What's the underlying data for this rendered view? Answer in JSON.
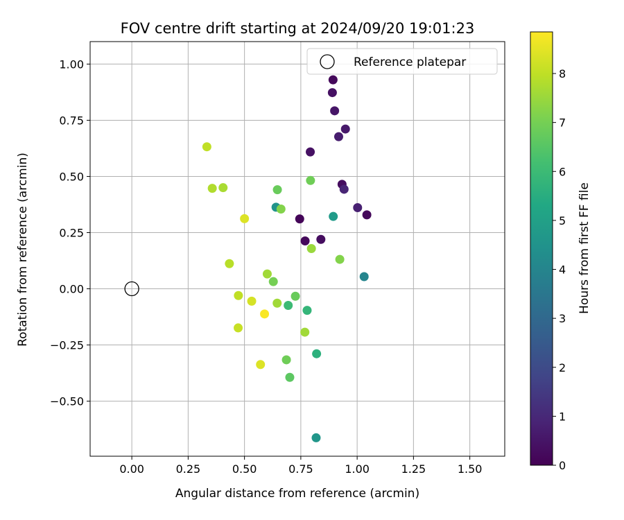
{
  "chart_data": {
    "type": "scatter",
    "title": "FOV centre drift starting at 2024/09/20 19:01:23",
    "xlabel": "Angular distance from reference (arcmin)",
    "ylabel": "Rotation from reference (arcmin)",
    "xlim": [
      -0.185,
      1.655
    ],
    "ylim": [
      -0.745,
      1.1
    ],
    "xticks": [
      0.0,
      0.25,
      0.5,
      0.75,
      1.0,
      1.25,
      1.5
    ],
    "xtick_labels": [
      "0.00",
      "0.25",
      "0.50",
      "0.75",
      "1.00",
      "1.25",
      "1.50"
    ],
    "yticks": [
      -0.5,
      -0.25,
      0.0,
      0.25,
      0.5,
      0.75,
      1.0
    ],
    "ytick_labels": [
      "−0.50",
      "−0.25",
      "0.00",
      "0.25",
      "0.50",
      "0.75",
      "1.00"
    ],
    "grid": true,
    "legend": {
      "position": "top-right",
      "entries": [
        "Reference platepar"
      ]
    },
    "reference_point": {
      "x": 0.0,
      "y": 0.0,
      "label": "Reference platepar"
    },
    "colorbar": {
      "label": "Hours from first FF file",
      "colormap": "viridis",
      "range": [
        0,
        8.85
      ],
      "ticks": [
        0,
        1,
        2,
        3,
        4,
        5,
        6,
        7,
        8
      ],
      "tick_labels": [
        "0",
        "1",
        "2",
        "3",
        "4",
        "5",
        "6",
        "7",
        "8"
      ]
    },
    "points": [
      {
        "x": 0.893,
        "y": 0.93,
        "c": 0.2
      },
      {
        "x": 0.89,
        "y": 0.873,
        "c": 0.4
      },
      {
        "x": 0.9,
        "y": 0.792,
        "c": 0.5
      },
      {
        "x": 0.948,
        "y": 0.711,
        "c": 0.6
      },
      {
        "x": 0.918,
        "y": 0.677,
        "c": 0.7
      },
      {
        "x": 0.792,
        "y": 0.609,
        "c": 0.4
      },
      {
        "x": 0.933,
        "y": 0.465,
        "c": 0.3
      },
      {
        "x": 0.942,
        "y": 0.443,
        "c": 0.9
      },
      {
        "x": 1.002,
        "y": 0.361,
        "c": 0.8
      },
      {
        "x": 1.043,
        "y": 0.329,
        "c": 0.2
      },
      {
        "x": 0.745,
        "y": 0.311,
        "c": 0.1
      },
      {
        "x": 0.839,
        "y": 0.22,
        "c": 0.3
      },
      {
        "x": 0.769,
        "y": 0.213,
        "c": 0.2
      },
      {
        "x": 0.894,
        "y": 0.322,
        "c": 4.8
      },
      {
        "x": 1.031,
        "y": 0.054,
        "c": 4.0
      },
      {
        "x": 0.64,
        "y": 0.363,
        "c": 4.5
      },
      {
        "x": 0.333,
        "y": 0.632,
        "c": 8.0
      },
      {
        "x": 0.357,
        "y": 0.447,
        "c": 7.8
      },
      {
        "x": 0.405,
        "y": 0.45,
        "c": 7.7
      },
      {
        "x": 0.646,
        "y": 0.441,
        "c": 6.8
      },
      {
        "x": 0.793,
        "y": 0.482,
        "c": 6.9
      },
      {
        "x": 0.662,
        "y": 0.355,
        "c": 7.2
      },
      {
        "x": 0.5,
        "y": 0.312,
        "c": 8.4
      },
      {
        "x": 0.797,
        "y": 0.179,
        "c": 7.5
      },
      {
        "x": 0.923,
        "y": 0.131,
        "c": 7.2
      },
      {
        "x": 0.433,
        "y": 0.112,
        "c": 7.9
      },
      {
        "x": 0.601,
        "y": 0.066,
        "c": 7.6
      },
      {
        "x": 0.628,
        "y": 0.032,
        "c": 7.0
      },
      {
        "x": 0.473,
        "y": -0.03,
        "c": 8.0
      },
      {
        "x": 0.532,
        "y": -0.055,
        "c": 8.3
      },
      {
        "x": 0.645,
        "y": -0.064,
        "c": 7.6
      },
      {
        "x": 0.726,
        "y": -0.033,
        "c": 6.8
      },
      {
        "x": 0.694,
        "y": -0.074,
        "c": 6.0
      },
      {
        "x": 0.778,
        "y": -0.096,
        "c": 5.8
      },
      {
        "x": 0.589,
        "y": -0.112,
        "c": 8.8
      },
      {
        "x": 0.472,
        "y": -0.174,
        "c": 8.1
      },
      {
        "x": 0.768,
        "y": -0.193,
        "c": 7.6
      },
      {
        "x": 0.82,
        "y": -0.289,
        "c": 5.6
      },
      {
        "x": 0.571,
        "y": -0.337,
        "c": 8.4
      },
      {
        "x": 0.686,
        "y": -0.316,
        "c": 6.9
      },
      {
        "x": 0.701,
        "y": -0.394,
        "c": 6.6
      },
      {
        "x": 0.818,
        "y": -0.663,
        "c": 4.6
      }
    ]
  }
}
